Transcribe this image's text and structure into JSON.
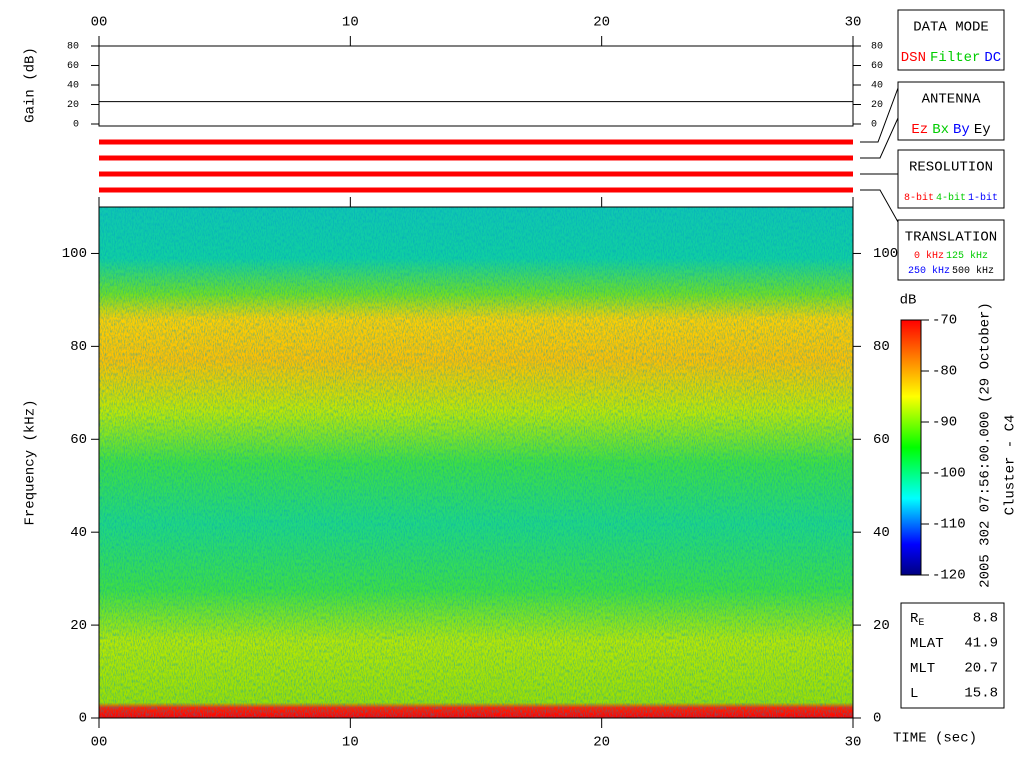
{
  "chart_data": [
    {
      "type": "line",
      "ylabel": "Gain (dB)",
      "x": [
        0,
        30
      ],
      "values": [
        23,
        23
      ],
      "color": "#000000",
      "xlim": [
        0,
        30
      ],
      "xticks": [
        {
          "value": 0,
          "label": "00"
        },
        10,
        20,
        30
      ],
      "ylim": [
        0,
        80
      ],
      "yticks": [
        0,
        20,
        40,
        60,
        80
      ]
    },
    {
      "type": "spectrogram",
      "ylabel": "Frequency (kHz)",
      "xlabel": "TIME (sec)",
      "xlim": [
        0,
        30
      ],
      "xticks": [
        {
          "value": 0,
          "label": "00"
        },
        10,
        20,
        30
      ],
      "ylim": [
        0,
        110
      ],
      "yticks": [
        0,
        20,
        40,
        60,
        80,
        100
      ],
      "colorbar": {
        "label": "dB",
        "lim": [
          -120,
          -70
        ],
        "ticks": [
          -120,
          -110,
          -100,
          -90,
          -80,
          -70
        ]
      },
      "side_title": "2005 302 07:56:00.000 (29 October)",
      "side_subtitle": "Cluster - C4"
    }
  ],
  "panels": [
    {
      "title": "DATA MODE",
      "rows": [
        [
          {
            "text": "DSN",
            "color": "#ff0000"
          },
          {
            "text": "Filter",
            "color": "#00cc00"
          },
          {
            "text": "DC",
            "color": "#0000ff"
          }
        ]
      ]
    },
    {
      "title": "ANTENNA",
      "rows": [
        [
          {
            "text": "Ez",
            "color": "#ff0000"
          },
          {
            "text": "Bx",
            "color": "#00cc00"
          },
          {
            "text": "By",
            "color": "#0000ff"
          },
          {
            "text": "Ey",
            "color": "#000000"
          }
        ]
      ]
    },
    {
      "title": "RESOLUTION",
      "rows": [
        [
          {
            "text": "8-bit",
            "color": "#ff0000"
          },
          {
            "text": "4-bit",
            "color": "#00cc00"
          },
          {
            "text": "1-bit",
            "color": "#0000ff"
          }
        ]
      ]
    },
    {
      "title": "TRANSLATION",
      "rows": [
        [
          {
            "text": "0 kHz",
            "color": "#ff0000"
          },
          {
            "text": "125 kHz",
            "color": "#00cc00"
          }
        ],
        [
          {
            "text": "250 kHz",
            "color": "#0000ff"
          },
          {
            "text": "500 kHz",
            "color": "#000000"
          }
        ]
      ]
    }
  ],
  "info": [
    {
      "label": "R",
      "sub": "E",
      "value": 8.8
    },
    {
      "label": "MLAT",
      "value": 41.9
    },
    {
      "label": "MLT",
      "value": 20.7
    },
    {
      "label": "L",
      "value": 15.8
    }
  ]
}
